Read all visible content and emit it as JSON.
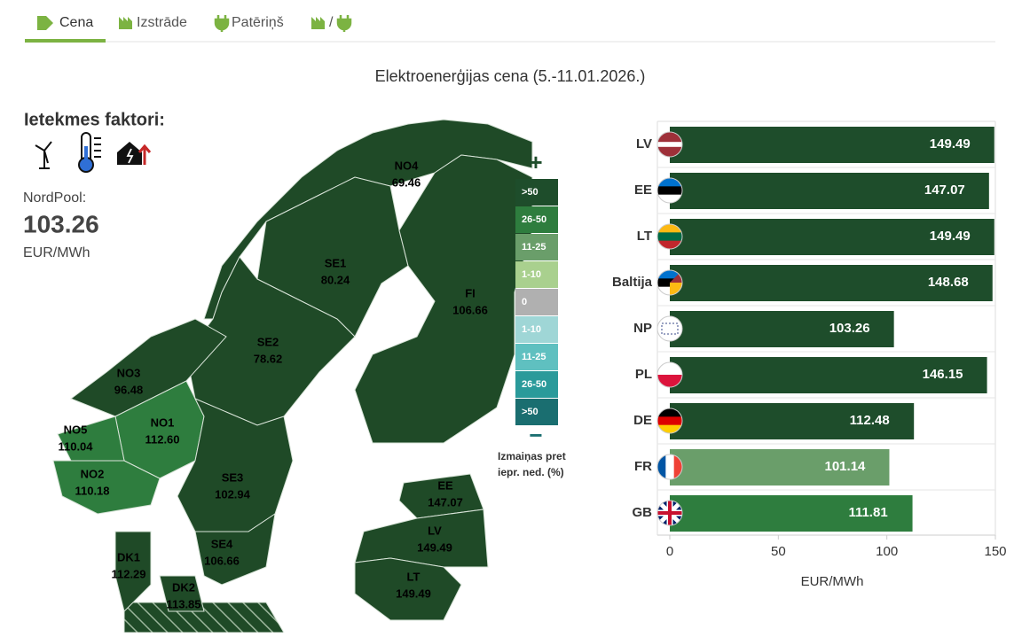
{
  "tabs": [
    "Cena",
    "Izstrāde",
    "Patēriņš",
    "/"
  ],
  "title": "Elektroenerģijas cena (5.-11.01.2026.)",
  "factors_title": "Ietekmes faktori:",
  "nordpool": {
    "label": "NordPool:",
    "value": "103.26",
    "unit": "EUR/MWh"
  },
  "map": {
    "regions": [
      {
        "name": "NO4",
        "value": "69.46"
      },
      {
        "name": "SE1",
        "value": "80.24"
      },
      {
        "name": "FI",
        "value": "106.66"
      },
      {
        "name": "SE2",
        "value": "78.62"
      },
      {
        "name": "NO3",
        "value": "96.48"
      },
      {
        "name": "NO1",
        "value": "112.60"
      },
      {
        "name": "NO5",
        "value": "110.04"
      },
      {
        "name": "NO2",
        "value": "110.18"
      },
      {
        "name": "SE3",
        "value": "102.94"
      },
      {
        "name": "SE4",
        "value": "106.66"
      },
      {
        "name": "DK1",
        "value": "112.29"
      },
      {
        "name": "DK2",
        "value": "113.85"
      },
      {
        "name": "EE",
        "value": "147.07"
      },
      {
        "name": "LV",
        "value": "149.49"
      },
      {
        "name": "LT",
        "value": "149.49"
      }
    ],
    "legend": {
      "plus": "+",
      "minus": "−",
      "items": [
        ">50",
        "26-50",
        "11-25",
        "1-10",
        "0",
        "1-10",
        "11-25",
        "26-50",
        ">50"
      ],
      "caption": [
        "Izmaiņas pret",
        "iepr. ned. (%)"
      ]
    }
  },
  "chart_data": {
    "type": "hbar",
    "categories": [
      "LV",
      "EE",
      "LT",
      "Baltija",
      "NP",
      "PL",
      "DE",
      "FR",
      "GB"
    ],
    "values": [
      149.49,
      147.07,
      149.49,
      148.68,
      103.26,
      146.15,
      112.48,
      101.14,
      111.81
    ],
    "colors": [
      "#1e4d2b",
      "#1e4d2b",
      "#1e4d2b",
      "#1e4d2b",
      "#1e4d2b",
      "#1e4d2b",
      "#1e4d2b",
      "#6a9e6a",
      "#2e7d3e"
    ],
    "xlim": [
      0,
      150
    ],
    "xticks": [
      0,
      50,
      100,
      150
    ],
    "xlabel": "EUR/MWh"
  }
}
